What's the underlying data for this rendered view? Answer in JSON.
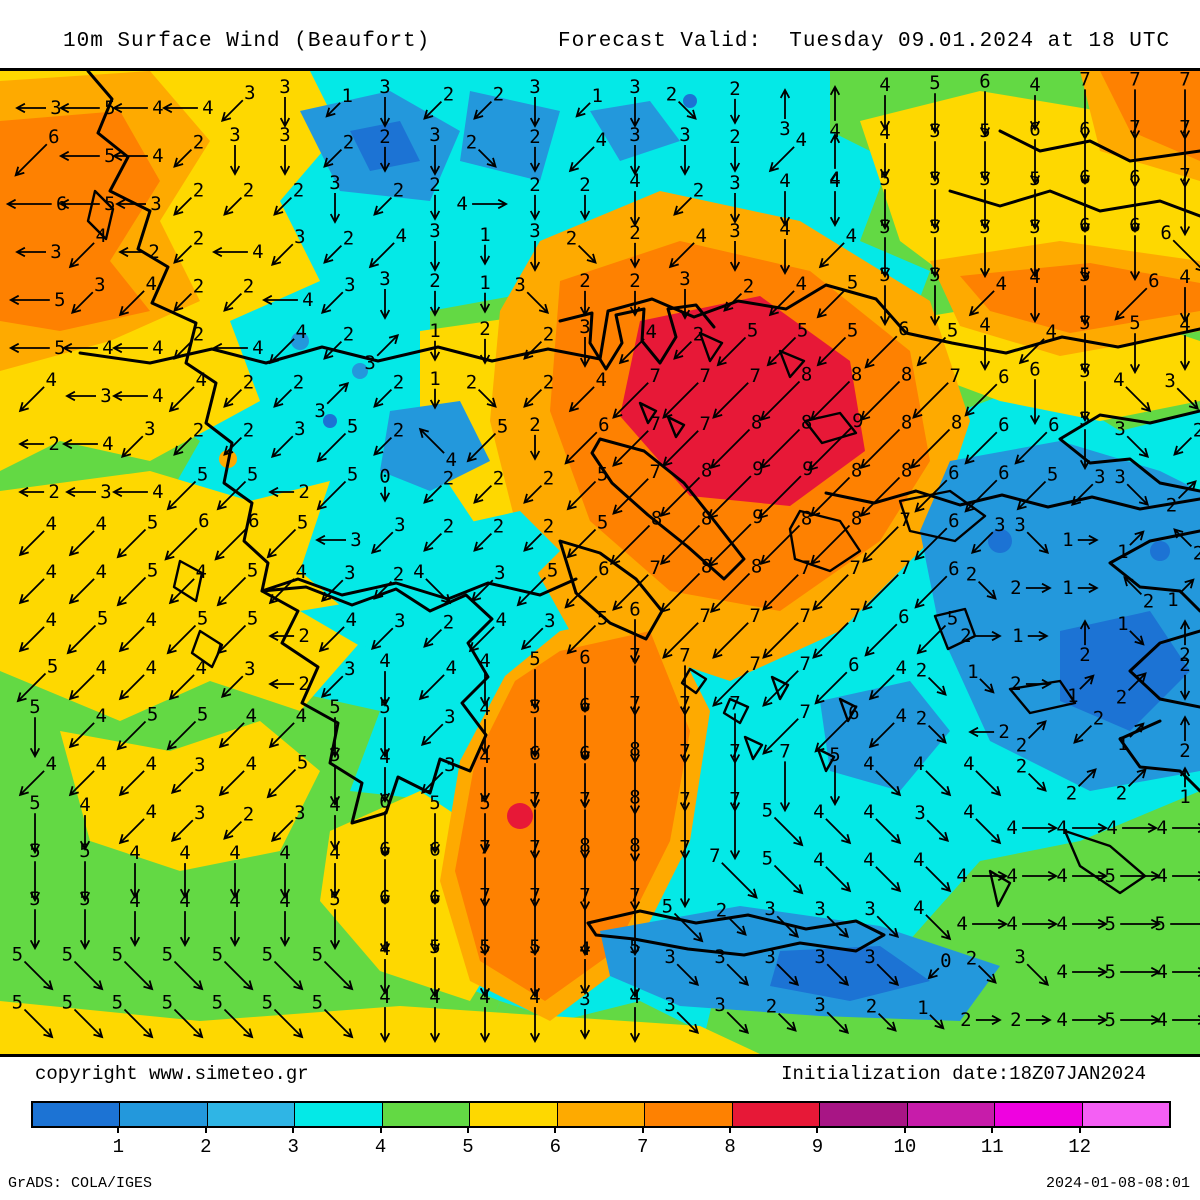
{
  "header": {
    "title": "10m Surface Wind (Beaufort)",
    "forecast": "Forecast Valid:  Tuesday 09.01.2024 at 18 UTC"
  },
  "overlay": {
    "copyright": "copyright www.simeteo.gr",
    "initialization": "Initialization date:18Z07JAN2024"
  },
  "footer": {
    "left": "GrADS: COLA/IGES",
    "right": "2024-01-08-08:01"
  },
  "colorbar": {
    "labels": [
      "1",
      "2",
      "3",
      "4",
      "5",
      "6",
      "7",
      "8",
      "9",
      "10",
      "11",
      "12"
    ],
    "colors": [
      "#1c73d4",
      "#2398dc",
      "#2fb5e5",
      "#04e9e7",
      "#63d944",
      "#fed800",
      "#feaa00",
      "#fe8101",
      "#e71837",
      "#a81585",
      "#c71caa",
      "#ef02e0",
      "#f45ff4"
    ]
  },
  "chart_data": {
    "type": "heatmap",
    "title": "10m Surface Wind (Beaufort)",
    "units": "Beaufort",
    "legend_range": [
      1,
      12
    ],
    "legend_position": "bottom",
    "wind_grid": {
      "description": "Beaufort force numbers with wind direction arrows, 24 columns x 20 rows, read from map",
      "direction_key": {
        "0": "E",
        "1": "SE",
        "2": "S",
        "3": "SW",
        "4": "W",
        "5": "NW",
        "6": "N",
        "7": "NE"
      },
      "values": [
        "354433132231322344564777",
        "654233223224332444556677",
        "653222322422423445555667",
        "342243243132243445555666",
        "534224332132232455544564",
        "544244231223425556544554",
        "434422321224777888766543",
        "243223524526778898866532",
        "234552502225789988665332",
        "445665332225889887633112",
        "445454324356788777622121",
        "454552432435677776521212",
        "544432344456777764212122",
        "545544553456777764222212",
        "444345543466877754442221",
        "544323465577877544344444",
        "554444466778877544444454",
        "554444566777752333444455",
        "555555545554533333023454",
        "555555544443433232122454"
      ],
      "directions": [
        "444432323323212662222222",
        "344322322123222362222222",
        "444333232022232222222222",
        "434343332221232232222221",
        "433334322212223332232232",
        "444343372232333333323222",
        "344333732133333333332211",
        "443333335323333333333213",
        "444334323333333333333317",
        "333333433333333333331075",
        "333333331333333333310057",
        "333334333333233333300616",
        "333334323222223333110772",
        "233333223222222333147376",
        "333333223222222221111776",
        "223333222222222111110000",
        "222222222222221111100000",
        "222222222222211111100000",
        "111111122222211111311000",
        "111111122222211111100000"
      ]
    }
  }
}
